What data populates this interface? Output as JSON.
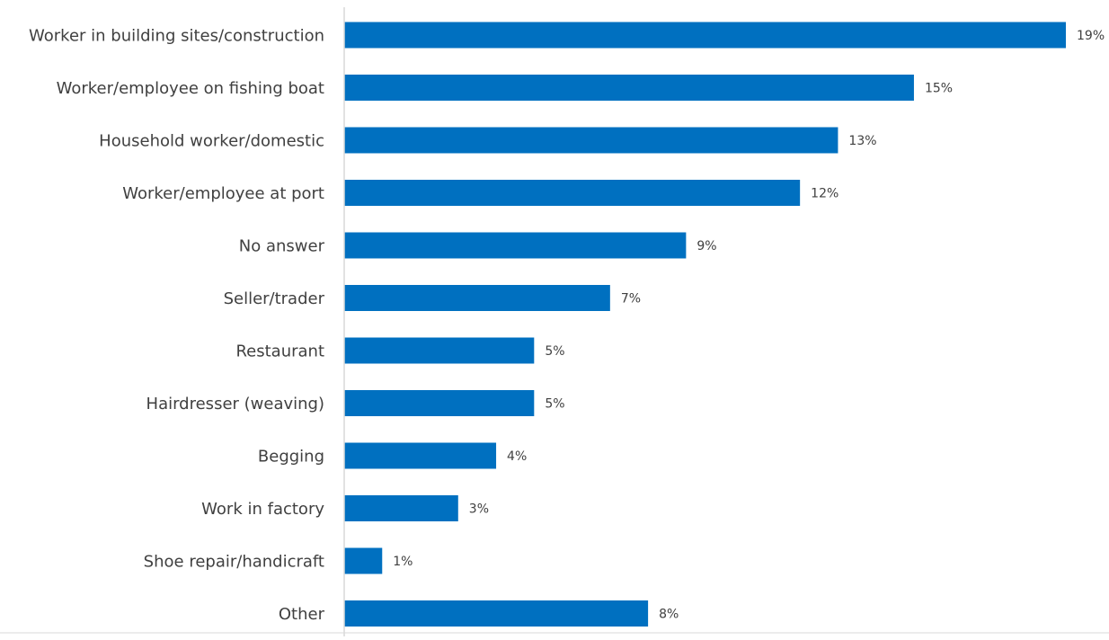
{
  "chart_data": {
    "type": "bar",
    "orientation": "horizontal",
    "categories": [
      "Worker in building sites/construction",
      "Worker/employee on fishing boat",
      "Household worker/domestic",
      "Worker/employee at port",
      "No answer",
      "Seller/trader",
      "Restaurant",
      "Hairdresser (weaving)",
      "Begging",
      "Work in factory",
      "Shoe repair/handicraft",
      "Other"
    ],
    "values": [
      19,
      15,
      13,
      12,
      9,
      7,
      5,
      5,
      4,
      3,
      1,
      8
    ],
    "value_labels": [
      "19%",
      "15%",
      "13%",
      "12%",
      "9%",
      "7%",
      "5%",
      "5%",
      "4%",
      "3%",
      "1%",
      "8%"
    ],
    "unit": "%",
    "xlim": [
      0,
      19
    ],
    "grid": false,
    "legend": "none",
    "colors": {
      "bar": "#0070C0",
      "axis": "#D9D9D9",
      "text": "#404040"
    }
  }
}
